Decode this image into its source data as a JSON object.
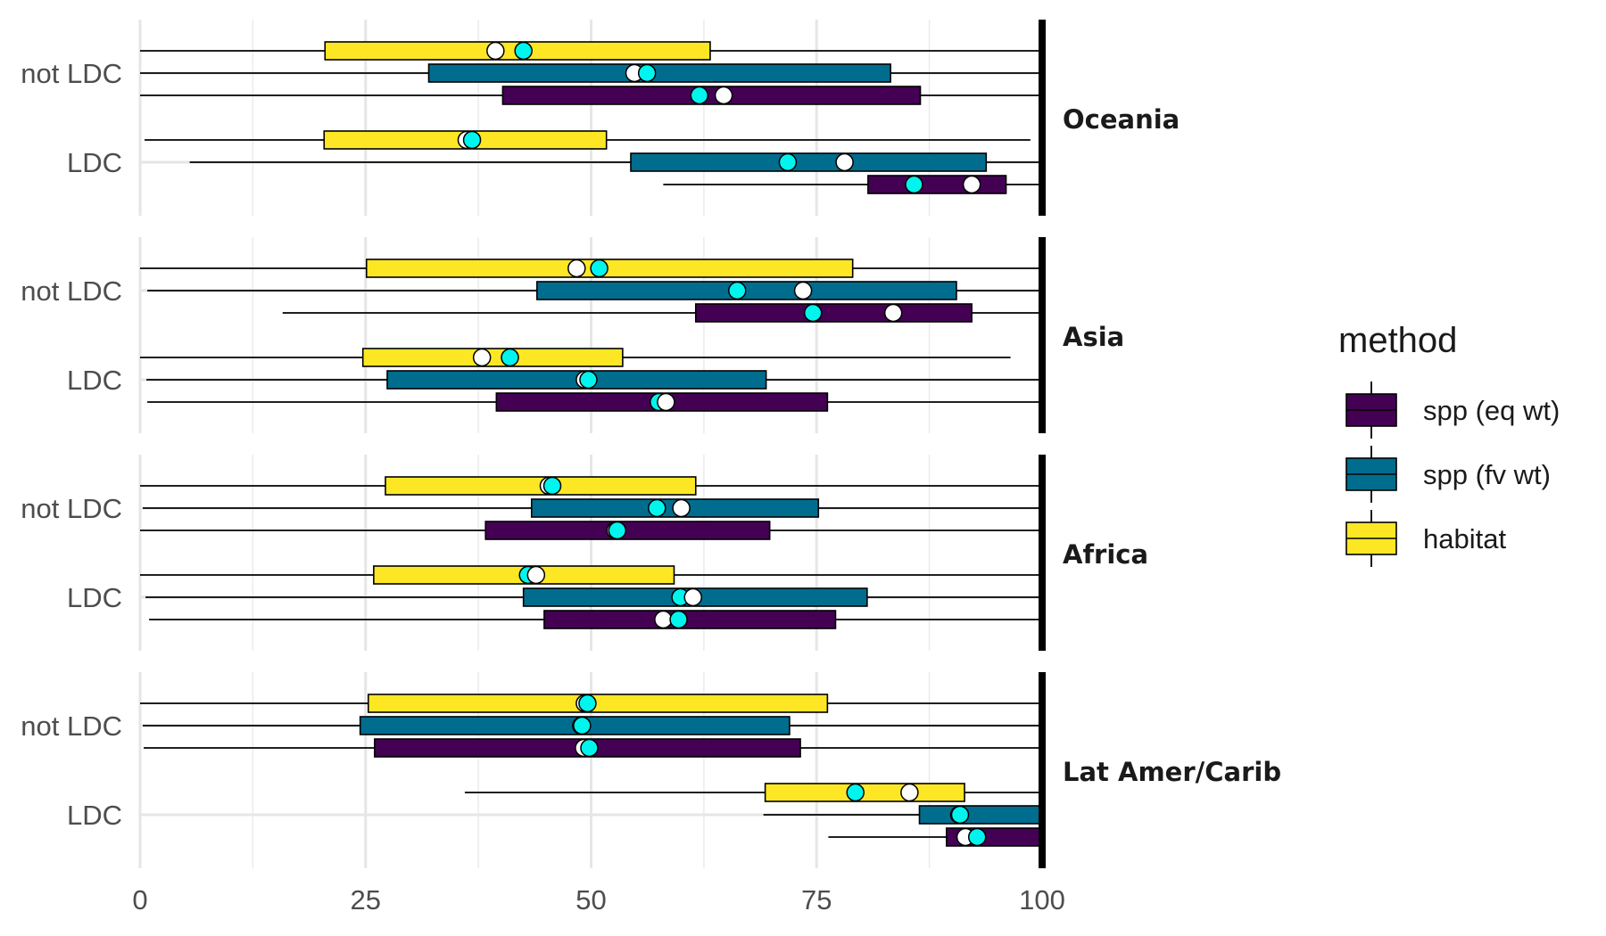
{
  "chart_data": {
    "type": "boxplot",
    "title": "",
    "xlabel": "",
    "ylabel": "",
    "xlim": [
      0,
      100
    ],
    "x_ticks": [
      "0",
      "25",
      "50",
      "75",
      "100"
    ],
    "grid": true,
    "legend": {
      "title": "method",
      "position": "right",
      "entries": [
        {
          "name": "spp (eq wt)",
          "color": "#440154"
        },
        {
          "name": "spp (fv wt)",
          "color": "#006d8f"
        },
        {
          "name": "habitat",
          "color": "#fde725"
        }
      ]
    },
    "mean_marker_color": "#00f5ee",
    "median_marker_color": "#ffffff",
    "facets": [
      {
        "name": "Oceania",
        "groups": [
          {
            "label": "not LDC",
            "boxes": [
              {
                "method": "habitat",
                "whisker": [
                  0,
                  100
                ],
                "q1": 20.5,
                "q3": 63.2,
                "median": 39.4,
                "mean": 42.5
              },
              {
                "method": "spp (fv wt)",
                "whisker": [
                  0,
                  100
                ],
                "q1": 32.0,
                "q3": 83.2,
                "median": 54.8,
                "mean": 56.2
              },
              {
                "method": "spp (eq wt)",
                "whisker": [
                  0,
                  100
                ],
                "q1": 40.2,
                "q3": 86.5,
                "median": 64.7,
                "mean": 62.0
              }
            ]
          },
          {
            "label": "LDC",
            "boxes": [
              {
                "method": "habitat",
                "whisker": [
                  0.5,
                  98.7
                ],
                "q1": 20.4,
                "q3": 51.7,
                "median": 36.2,
                "mean": 36.8
              },
              {
                "method": "spp (fv wt)",
                "whisker": [
                  5.5,
                  100
                ],
                "q1": 54.4,
                "q3": 93.8,
                "median": 78.1,
                "mean": 71.8
              },
              {
                "method": "spp (eq wt)",
                "whisker": [
                  58.0,
                  100
                ],
                "q1": 80.7,
                "q3": 96.0,
                "median": 92.2,
                "mean": 85.8
              }
            ]
          }
        ]
      },
      {
        "name": "Asia",
        "groups": [
          {
            "label": "not LDC",
            "boxes": [
              {
                "method": "habitat",
                "whisker": [
                  0,
                  100
                ],
                "q1": 25.1,
                "q3": 79.0,
                "median": 48.4,
                "mean": 50.9
              },
              {
                "method": "spp (fv wt)",
                "whisker": [
                  0.8,
                  100
                ],
                "q1": 44.0,
                "q3": 90.5,
                "median": 73.5,
                "mean": 66.2
              },
              {
                "method": "spp (eq wt)",
                "whisker": [
                  15.8,
                  100
                ],
                "q1": 61.6,
                "q3": 92.2,
                "median": 83.5,
                "mean": 74.6
              }
            ]
          },
          {
            "label": "LDC",
            "boxes": [
              {
                "method": "habitat",
                "whisker": [
                  0,
                  96.5
                ],
                "q1": 24.7,
                "q3": 53.5,
                "median": 37.9,
                "mean": 41.0
              },
              {
                "method": "spp (fv wt)",
                "whisker": [
                  0.7,
                  100
                ],
                "q1": 27.4,
                "q3": 69.4,
                "median": 49.3,
                "mean": 49.7
              },
              {
                "method": "spp (eq wt)",
                "whisker": [
                  0.8,
                  100
                ],
                "q1": 39.5,
                "q3": 76.2,
                "median": 58.3,
                "mean": 57.5
              }
            ]
          }
        ]
      },
      {
        "name": "Africa",
        "groups": [
          {
            "label": "not LDC",
            "boxes": [
              {
                "method": "habitat",
                "whisker": [
                  0,
                  100
                ],
                "q1": 27.2,
                "q3": 61.6,
                "median": 45.3,
                "mean": 45.7
              },
              {
                "method": "spp (fv wt)",
                "whisker": [
                  0.3,
                  100
                ],
                "q1": 43.4,
                "q3": 75.2,
                "median": 60.0,
                "mean": 57.3
              },
              {
                "method": "spp (eq wt)",
                "whisker": [
                  0,
                  100
                ],
                "q1": 38.3,
                "q3": 69.8,
                "median": 52.7,
                "mean": 52.9
              }
            ]
          },
          {
            "label": "LDC",
            "boxes": [
              {
                "method": "habitat",
                "whisker": [
                  0,
                  100
                ],
                "q1": 25.9,
                "q3": 59.2,
                "median": 43.9,
                "mean": 43.0
              },
              {
                "method": "spp (fv wt)",
                "whisker": [
                  0.6,
                  100
                ],
                "q1": 42.5,
                "q3": 80.6,
                "median": 61.3,
                "mean": 59.9
              },
              {
                "method": "spp (eq wt)",
                "whisker": [
                  1.0,
                  100
                ],
                "q1": 44.8,
                "q3": 77.1,
                "median": 58.0,
                "mean": 59.7
              }
            ]
          }
        ]
      },
      {
        "name": "Lat Amer/Carib",
        "groups": [
          {
            "label": "not LDC",
            "boxes": [
              {
                "method": "habitat",
                "whisker": [
                  0,
                  100
                ],
                "q1": 25.3,
                "q3": 76.2,
                "median": 49.3,
                "mean": 49.6
              },
              {
                "method": "spp (fv wt)",
                "whisker": [
                  0.3,
                  100
                ],
                "q1": 24.4,
                "q3": 72.0,
                "median": 48.9,
                "mean": 49.0
              },
              {
                "method": "spp (eq wt)",
                "whisker": [
                  0.4,
                  100
                ],
                "q1": 26.0,
                "q3": 73.2,
                "median": 49.2,
                "mean": 49.8
              }
            ]
          },
          {
            "label": "LDC",
            "boxes": [
              {
                "method": "habitat",
                "whisker": [
                  36.0,
                  100
                ],
                "q1": 69.3,
                "q3": 91.4,
                "median": 85.3,
                "mean": 79.3
              },
              {
                "method": "spp (fv wt)",
                "whisker": [
                  69.1,
                  100
                ],
                "q1": 86.4,
                "q3": 100,
                "median": 90.8,
                "mean": 90.9
              },
              {
                "method": "spp (eq wt)",
                "whisker": [
                  76.3,
                  100
                ],
                "q1": 89.4,
                "q3": 100,
                "median": 91.5,
                "mean": 92.8
              }
            ]
          }
        ]
      }
    ]
  }
}
